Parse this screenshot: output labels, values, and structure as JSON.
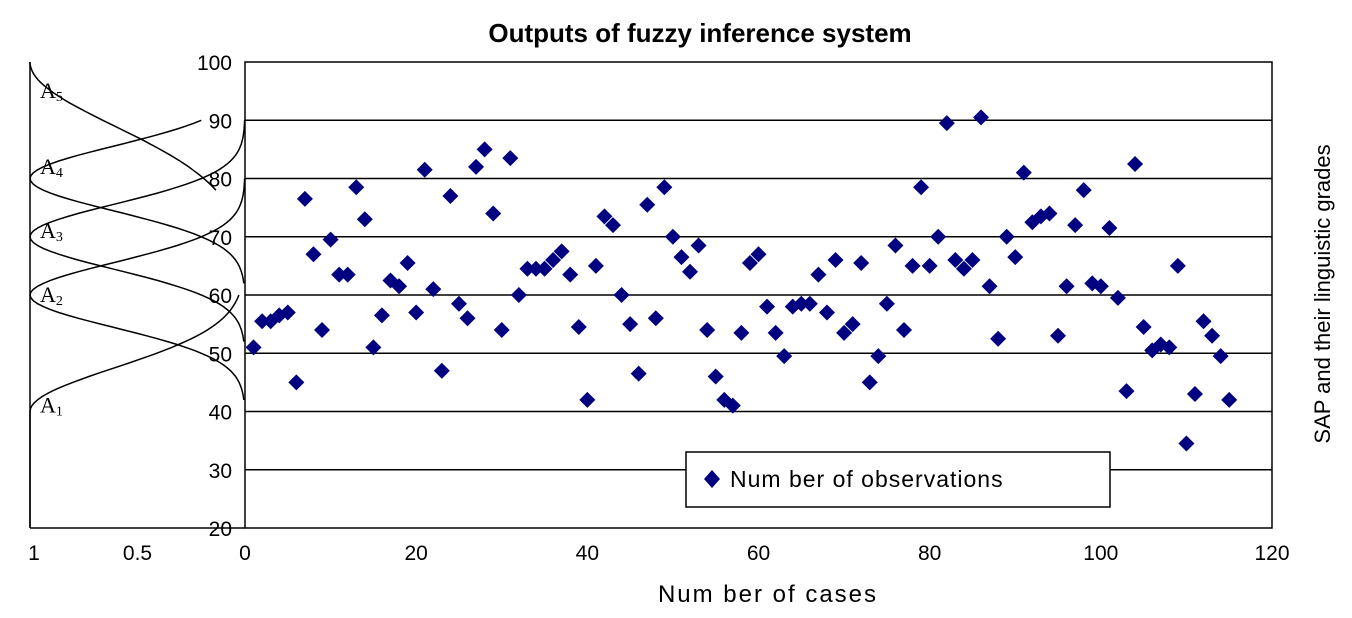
{
  "chart_data": {
    "type": "scatter",
    "title": "Outputs of fuzzy inference system",
    "xlabel": "Num ber of cases",
    "ylabel_right": "SAP and their linguistic grades",
    "xlim": [
      0,
      120
    ],
    "ylim": [
      20,
      100
    ],
    "x_ticks": [
      "0",
      "20",
      "40",
      "60",
      "80",
      "100",
      "120"
    ],
    "y_ticks": [
      "20",
      "30",
      "40",
      "50",
      "60",
      "70",
      "80",
      "90",
      "100"
    ],
    "membership_ticks": [
      "1",
      "0.5"
    ],
    "grid": "horizontal",
    "legend_position": "bottom-right",
    "marker": "diamond",
    "colors": {
      "series": "#000080",
      "grid": "#000000",
      "background": "#ffffff"
    },
    "membership_labels": [
      {
        "letter": "A",
        "sub": "5"
      },
      {
        "letter": "A",
        "sub": "4"
      },
      {
        "letter": "A",
        "sub": "3"
      },
      {
        "letter": "A",
        "sub": "2"
      },
      {
        "letter": "A",
        "sub": "1"
      }
    ],
    "series": [
      {
        "name": "Num ber of observations",
        "points": [
          [
            1,
            51
          ],
          [
            2,
            55.5
          ],
          [
            3,
            55.5
          ],
          [
            4,
            56.5
          ],
          [
            5,
            57
          ],
          [
            6,
            45
          ],
          [
            7,
            76.5
          ],
          [
            8,
            67
          ],
          [
            9,
            54
          ],
          [
            10,
            69.5
          ],
          [
            11,
            63.5
          ],
          [
            12,
            63.5
          ],
          [
            13,
            78.5
          ],
          [
            14,
            73
          ],
          [
            15,
            51
          ],
          [
            16,
            56.5
          ],
          [
            17,
            62.5
          ],
          [
            18,
            61.5
          ],
          [
            19,
            65.5
          ],
          [
            20,
            57
          ],
          [
            21,
            81.5
          ],
          [
            22,
            61
          ],
          [
            23,
            47
          ],
          [
            24,
            77
          ],
          [
            25,
            58.5
          ],
          [
            26,
            56
          ],
          [
            27,
            82
          ],
          [
            28,
            85
          ],
          [
            29,
            74
          ],
          [
            30,
            54
          ],
          [
            31,
            83.5
          ],
          [
            32,
            60
          ],
          [
            33,
            64.5
          ],
          [
            34,
            64.5
          ],
          [
            35,
            64.5
          ],
          [
            36,
            66
          ],
          [
            37,
            67.5
          ],
          [
            38,
            63.5
          ],
          [
            39,
            54.5
          ],
          [
            40,
            42
          ],
          [
            41,
            65
          ],
          [
            42,
            73.5
          ],
          [
            43,
            72
          ],
          [
            44,
            60
          ],
          [
            45,
            55
          ],
          [
            46,
            46.5
          ],
          [
            47,
            75.5
          ],
          [
            48,
            56
          ],
          [
            49,
            78.5
          ],
          [
            50,
            70
          ],
          [
            51,
            66.5
          ],
          [
            52,
            64
          ],
          [
            53,
            68.5
          ],
          [
            54,
            54
          ],
          [
            55,
            46
          ],
          [
            56,
            42
          ],
          [
            57,
            41
          ],
          [
            58,
            53.5
          ],
          [
            59,
            65.5
          ],
          [
            60,
            67
          ],
          [
            61,
            58
          ],
          [
            62,
            53.5
          ],
          [
            63,
            49.5
          ],
          [
            64,
            58
          ],
          [
            65,
            58.5
          ],
          [
            66,
            58.5
          ],
          [
            67,
            63.5
          ],
          [
            68,
            57
          ],
          [
            69,
            66
          ],
          [
            70,
            53.5
          ],
          [
            71,
            55
          ],
          [
            72,
            65.5
          ],
          [
            73,
            45
          ],
          [
            74,
            49.5
          ],
          [
            75,
            58.5
          ],
          [
            76,
            68.5
          ],
          [
            77,
            54
          ],
          [
            78,
            65
          ],
          [
            79,
            78.5
          ],
          [
            80,
            65
          ],
          [
            81,
            70
          ],
          [
            82,
            89.5
          ],
          [
            83,
            66
          ],
          [
            84,
            64.5
          ],
          [
            85,
            66
          ],
          [
            86,
            90.5
          ],
          [
            87,
            61.5
          ],
          [
            88,
            52.5
          ],
          [
            89,
            70
          ],
          [
            90,
            66.5
          ],
          [
            91,
            81
          ],
          [
            92,
            72.5
          ],
          [
            93,
            73.5
          ],
          [
            94,
            74
          ],
          [
            95,
            53
          ],
          [
            96,
            61.5
          ],
          [
            97,
            72
          ],
          [
            98,
            78
          ],
          [
            99,
            62
          ],
          [
            100,
            61.5
          ],
          [
            101,
            71.5
          ],
          [
            102,
            59.5
          ],
          [
            103,
            43.5
          ],
          [
            104,
            82.5
          ],
          [
            105,
            54.5
          ],
          [
            106,
            50.5
          ],
          [
            107,
            51.5
          ],
          [
            108,
            51
          ],
          [
            109,
            65
          ],
          [
            110,
            34.5
          ],
          [
            111,
            43
          ],
          [
            112,
            55.5
          ],
          [
            113,
            53
          ],
          [
            114,
            49.5
          ],
          [
            115,
            42
          ]
        ]
      }
    ]
  }
}
